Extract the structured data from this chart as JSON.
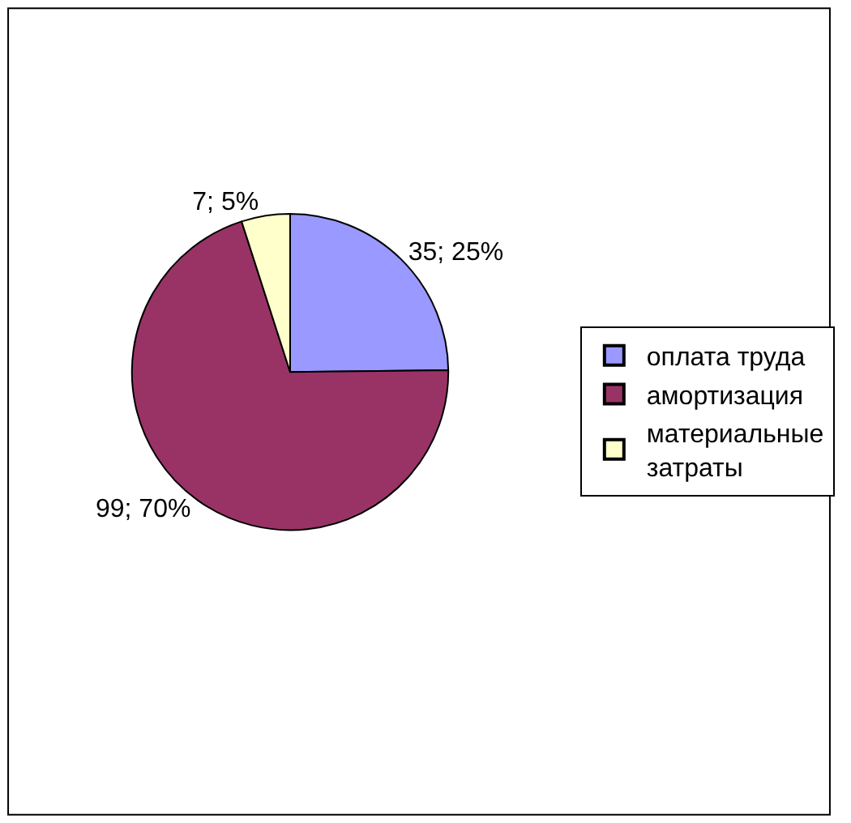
{
  "chart_data": {
    "type": "pie",
    "categories": [
      "оплата труда",
      "амортизация",
      "материальные затраты"
    ],
    "values": [
      35,
      99,
      7
    ],
    "colors": [
      "#9999ff",
      "#993366",
      "#ffffcc"
    ],
    "value_labels": [
      "35; 25%",
      "99; 70%",
      "7; 5%"
    ],
    "legend": "right"
  }
}
